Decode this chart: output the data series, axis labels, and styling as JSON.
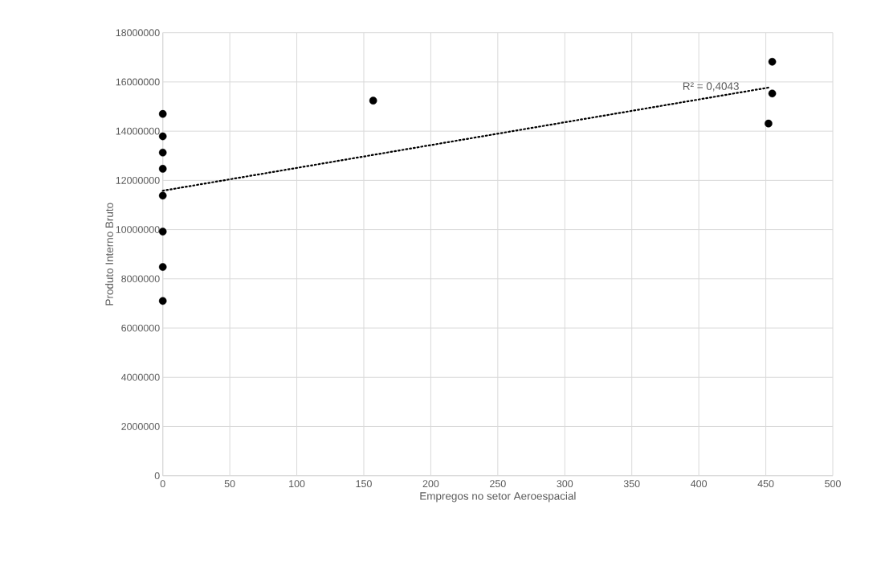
{
  "chart_data": {
    "type": "scatter",
    "xlabel": "Empregos no setor Aeroespacial",
    "ylabel": "Produto Interno Bruto",
    "xlim": [
      0,
      500
    ],
    "ylim": [
      0,
      18000000
    ],
    "xticks": [
      0,
      50,
      100,
      150,
      200,
      250,
      300,
      350,
      400,
      450,
      500
    ],
    "yticks": [
      0,
      2000000,
      4000000,
      6000000,
      8000000,
      10000000,
      12000000,
      14000000,
      16000000,
      18000000
    ],
    "grid": true,
    "marker": "circle",
    "series": [
      {
        "color": "#000000",
        "x": [
          0,
          0,
          0,
          0,
          0,
          0,
          0,
          0,
          157,
          454.8,
          454.8,
          452
        ],
        "values": [
          14700000,
          13790000,
          13130000,
          12470000,
          11380000,
          9920000,
          8480000,
          7100000,
          15240000,
          16820000,
          15530000,
          14310000
        ]
      },
      {
        "type": "line",
        "line_style": "dotted",
        "marker": "none",
        "color": "#000000",
        "x": [
          0,
          453
        ],
        "values": [
          11580000,
          15780000
        ]
      }
    ],
    "annotations": [
      "R² = 0,4043"
    ]
  }
}
